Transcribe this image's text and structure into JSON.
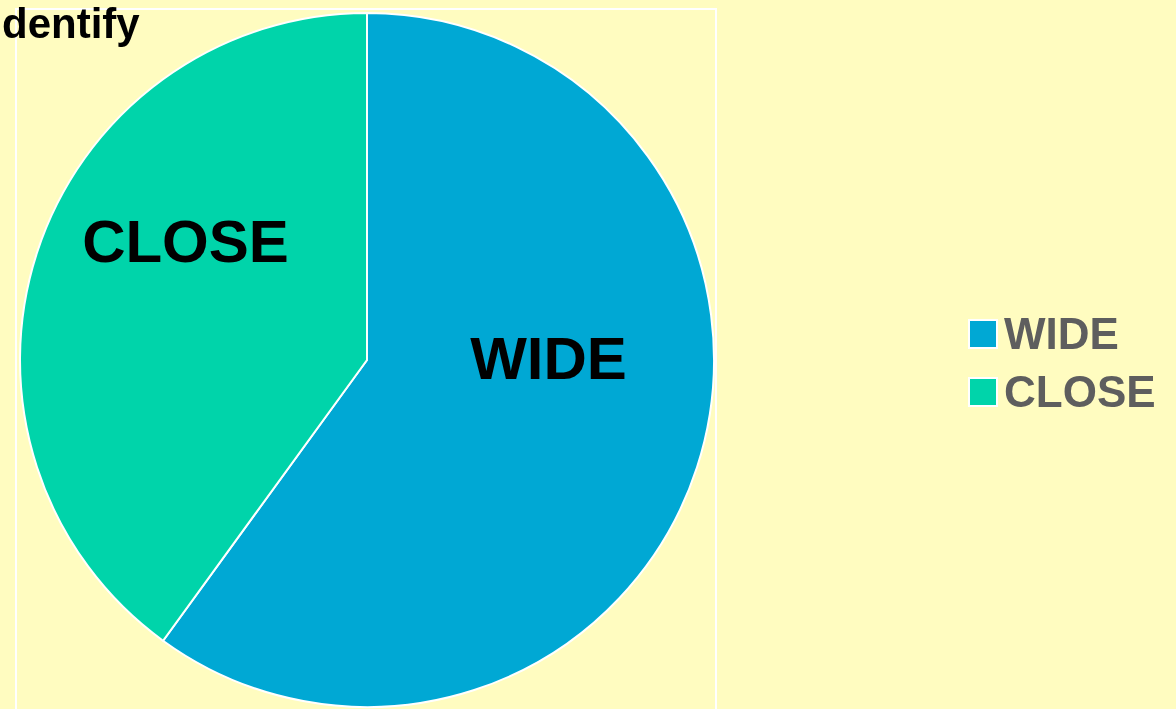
{
  "chart_data": {
    "type": "pie",
    "title": "dentify",
    "categories": [
      "WIDE",
      "CLOSE"
    ],
    "values": [
      60,
      40
    ],
    "colors": [
      "#00a8d4",
      "#00d4aa"
    ],
    "legend": "right"
  }
}
